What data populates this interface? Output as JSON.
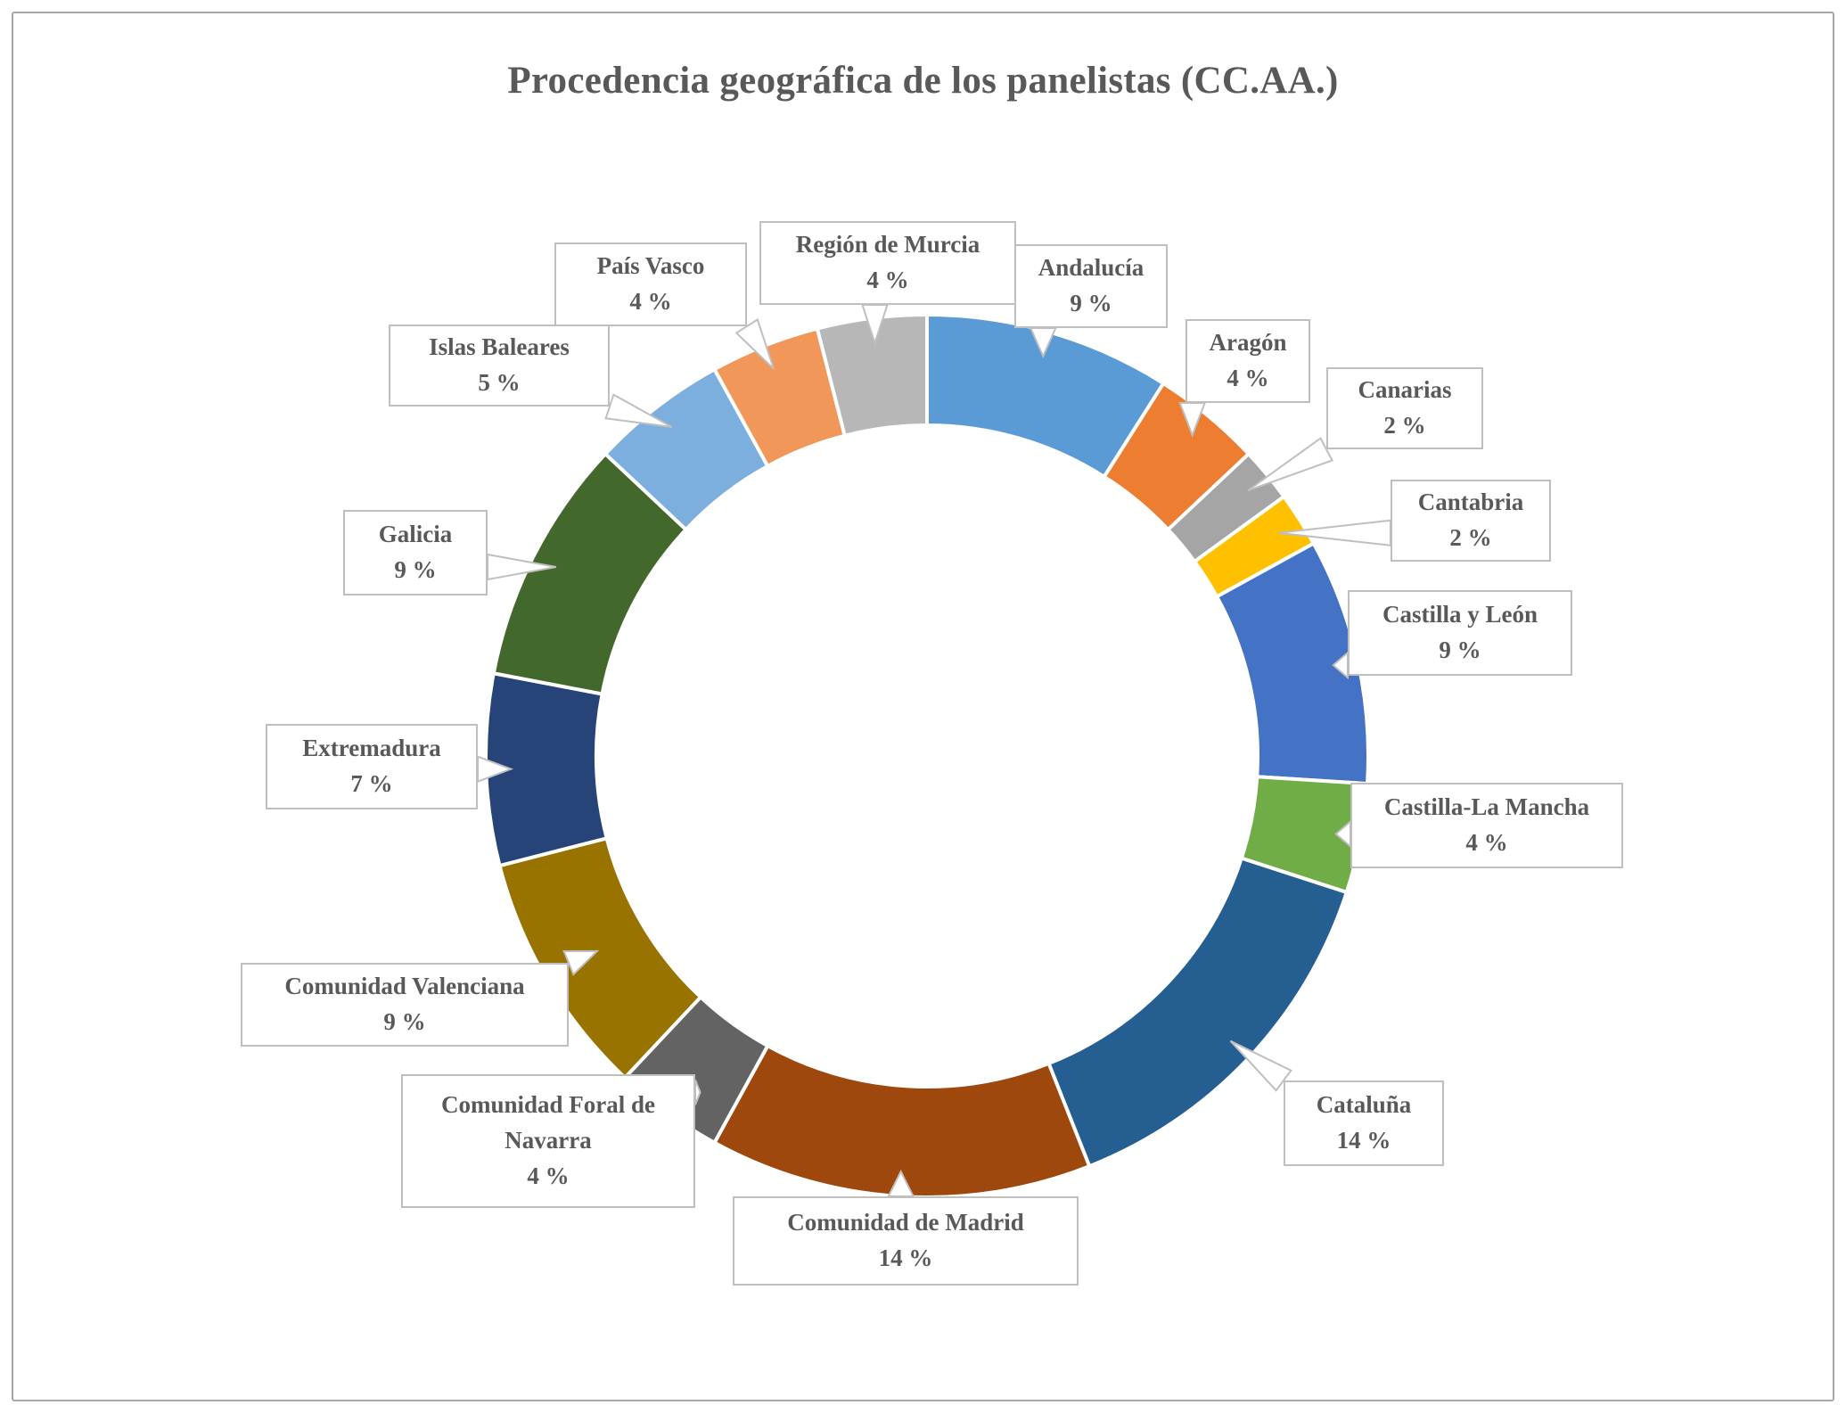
{
  "frame": {
    "border_color": "#A6A6A6",
    "background": "#FFFFFF"
  },
  "chart_data": {
    "type": "pie",
    "subtype": "doughnut",
    "title": "Procedencia geográfica de los panelistas (CC.AA.)",
    "title_color": "#595959",
    "unit": "%",
    "start_angle_deg": 0,
    "direction": "clockwise",
    "donut_hole_ratio": 0.75,
    "label_style": "outside callout boxes with leader lines",
    "legend": "none",
    "segments": [
      {
        "label": "Andalucía",
        "value": 9,
        "display": "9 %",
        "color": "#5B9BD5"
      },
      {
        "label": "Aragón",
        "value": 4,
        "display": "4 %",
        "color": "#ED7D31"
      },
      {
        "label": "Canarias",
        "value": 2,
        "display": "2 %",
        "color": "#A5A5A5"
      },
      {
        "label": "Cantabria",
        "value": 2,
        "display": "2 %",
        "color": "#FFC000"
      },
      {
        "label": "Castilla y León",
        "value": 9,
        "display": "9 %",
        "color": "#4472C4"
      },
      {
        "label": "Castilla-La Mancha",
        "value": 4,
        "display": "4 %",
        "color": "#70AD47"
      },
      {
        "label": "Cataluña",
        "value": 14,
        "display": "14 %",
        "color": "#255E91"
      },
      {
        "label": "Comunidad de Madrid",
        "value": 14,
        "display": "14 %",
        "color": "#9E480E"
      },
      {
        "label": "Comunidad Foral de Navarra",
        "value": 4,
        "display": "4 %",
        "color": "#636363"
      },
      {
        "label": "Comunidad Valenciana",
        "value": 9,
        "display": "9 %",
        "color": "#997300"
      },
      {
        "label": "Extremadura",
        "value": 7,
        "display": "7 %",
        "color": "#264478"
      },
      {
        "label": "Galicia",
        "value": 9,
        "display": "9 %",
        "color": "#43682B"
      },
      {
        "label": "Islas Baleares",
        "value": 5,
        "display": "5 %",
        "color": "#7CAFDD"
      },
      {
        "label": "País Vasco",
        "value": 4,
        "display": "4 %",
        "color": "#F1975A"
      },
      {
        "label": "Región de Murcia",
        "value": 4,
        "display": "4 %",
        "color": "#B7B7B7"
      }
    ]
  }
}
